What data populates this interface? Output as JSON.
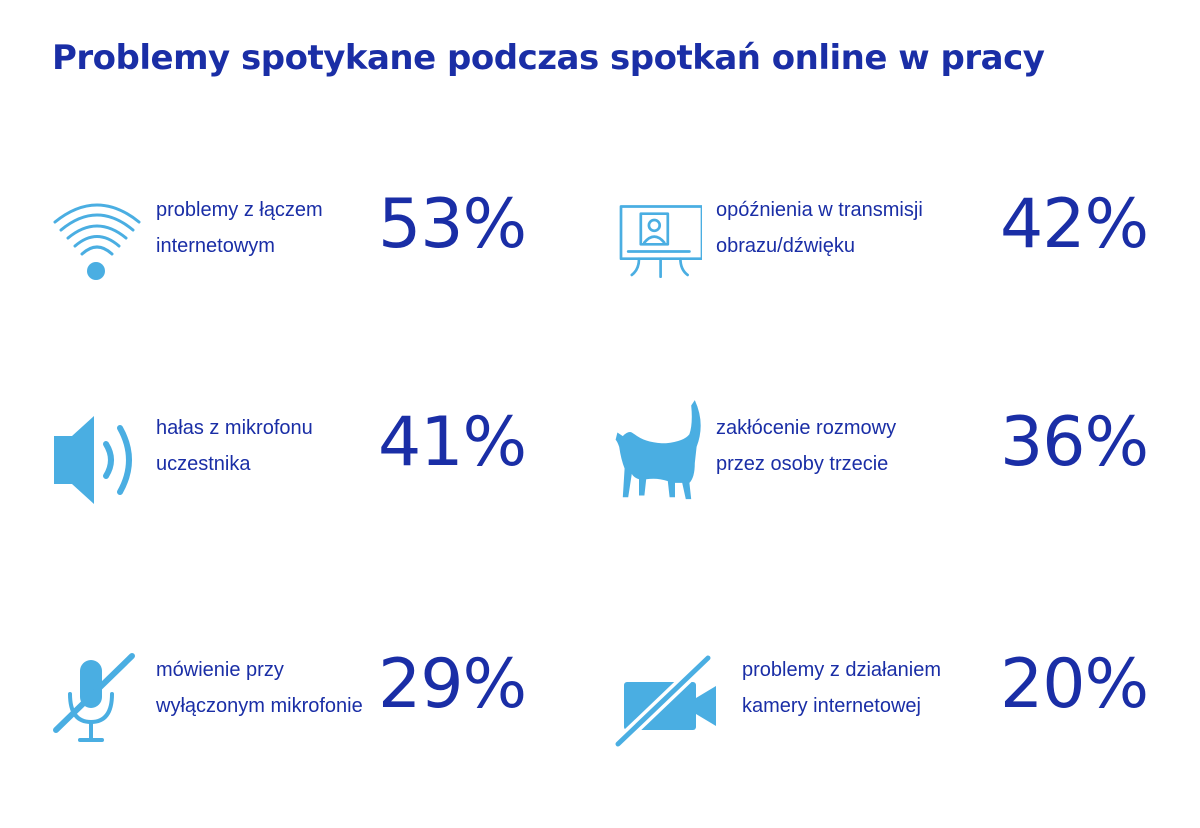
{
  "title": "Problemy spotykane podczas spotkań online w pracy",
  "colors": {
    "text": "#1a2ea6",
    "icon": "#4aaee2"
  },
  "items": [
    {
      "icon": "wifi-icon",
      "label": "problemy z łączem internetowym",
      "value": "53%"
    },
    {
      "icon": "monitor-video-icon",
      "label": "opóźnienia w transmisji obrazu/dźwięku",
      "value": "42%"
    },
    {
      "icon": "speaker-icon",
      "label": "hałas z mikrofonu uczestnika",
      "value": "41%"
    },
    {
      "icon": "cat-icon",
      "label": "zakłócenie rozmowy przez osoby trzecie",
      "value": "36%"
    },
    {
      "icon": "muted-microphone-icon",
      "label": "mówienie przy wyłączonym mikrofonie",
      "value": "29%"
    },
    {
      "icon": "camera-off-icon",
      "label": "problemy z działaniem kamery internetowej",
      "value": "20%"
    }
  ]
}
